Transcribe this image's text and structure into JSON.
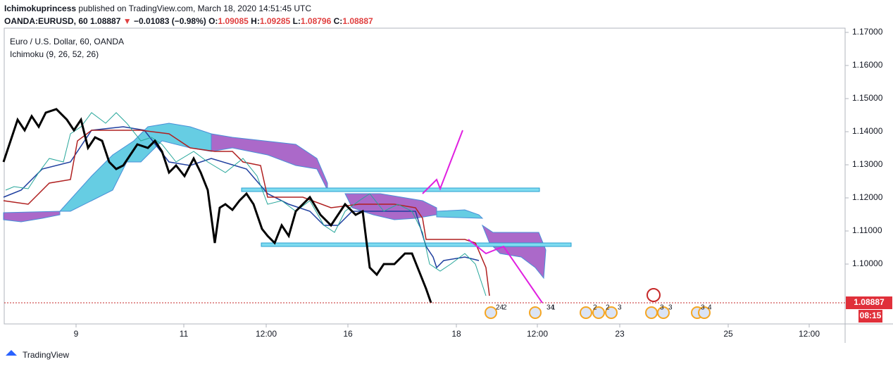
{
  "header": {
    "author": "Ichimokuprincess",
    "published": "published on TradingView.com, March 18, 2020 14:51:45 UTC"
  },
  "quote": {
    "symbol": "OANDA:EURUSD, 60",
    "last": "1.08887",
    "change": "−0.01083 (−0.98%)",
    "open_label": "O:",
    "open": "1.09085",
    "high_label": "H:",
    "high": "1.09285",
    "low_label": "L:",
    "low": "1.08796",
    "close_label": "C:",
    "close": "1.08887"
  },
  "legend": {
    "instrument": "Euro / U.S. Dollar, 60, OANDA",
    "indicator": "Ichimoku (9, 26, 52, 26)"
  },
  "price_axis": [
    "1.17000",
    "1.16000",
    "1.15000",
    "1.14000",
    "1.13000",
    "1.12000",
    "1.11000",
    "1.10000"
  ],
  "current_price": "1.08887",
  "countdown": "08:15",
  "time_axis": [
    "9",
    "11",
    "12:00",
    "16",
    "18",
    "12:00",
    "23",
    "25",
    "12:00"
  ],
  "events": [
    "24",
    "2",
    "34",
    "1",
    "2",
    "2",
    "3",
    "3",
    "3",
    "3",
    "4"
  ],
  "footer": "TradingView"
}
